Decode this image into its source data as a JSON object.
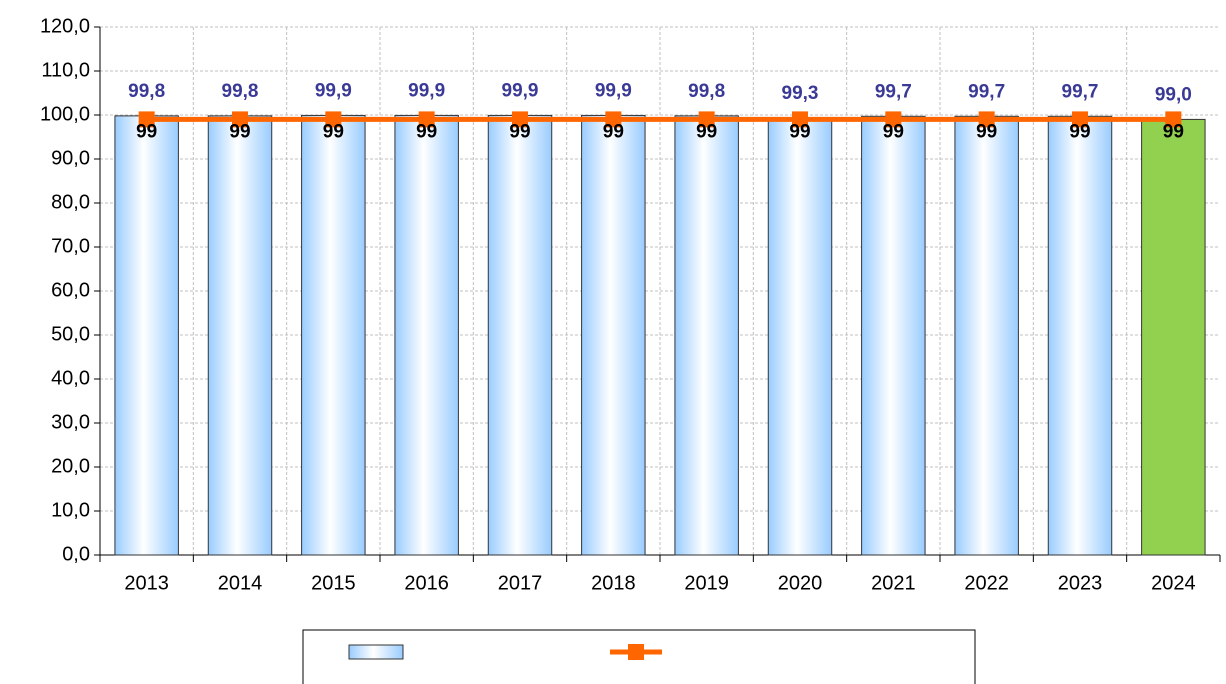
{
  "chart_data": {
    "type": "bar",
    "categories": [
      "2013",
      "2014",
      "2015",
      "2016",
      "2017",
      "2018",
      "2019",
      "2020",
      "2021",
      "2022",
      "2023",
      "2024"
    ],
    "series": [
      {
        "type": "bar",
        "color": "#99ccff",
        "colors": [
          "#99ccff",
          "#99ccff",
          "#99ccff",
          "#99ccff",
          "#99ccff",
          "#99ccff",
          "#99ccff",
          "#99ccff",
          "#99ccff",
          "#99ccff",
          "#99ccff",
          "#92d050"
        ],
        "values": [
          99.8,
          99.8,
          99.9,
          99.9,
          99.9,
          99.9,
          99.8,
          99.3,
          99.7,
          99.7,
          99.7,
          99.0
        ],
        "value_labels": [
          "99,8",
          "99,8",
          "99,9",
          "99,9",
          "99,9",
          "99,9",
          "99,8",
          "99,3",
          "99,7",
          "99,7",
          "99,7",
          "99,0"
        ]
      },
      {
        "type": "line",
        "color": "#ff6600",
        "values": [
          99,
          99,
          99,
          99,
          99,
          99,
          99,
          99,
          99,
          99,
          99,
          99
        ]
      }
    ],
    "ylim": [
      0,
      120
    ],
    "yticks": [
      {
        "value": 0,
        "label": "0,0"
      },
      {
        "value": 10,
        "label": "10,0"
      },
      {
        "value": 20,
        "label": "20,0"
      },
      {
        "value": 30,
        "label": "30,0"
      },
      {
        "value": 40,
        "label": "40,0"
      },
      {
        "value": 50,
        "label": "50,0"
      },
      {
        "value": 60,
        "label": "60,0"
      },
      {
        "value": 70,
        "label": "70,0"
      },
      {
        "value": 80,
        "label": "80,0"
      },
      {
        "value": 90,
        "label": "90,0"
      },
      {
        "value": 100,
        "label": "100,0"
      },
      {
        "value": 110,
        "label": "110,0"
      },
      {
        "value": 120,
        "label": "120,0"
      }
    ],
    "grid": true
  }
}
